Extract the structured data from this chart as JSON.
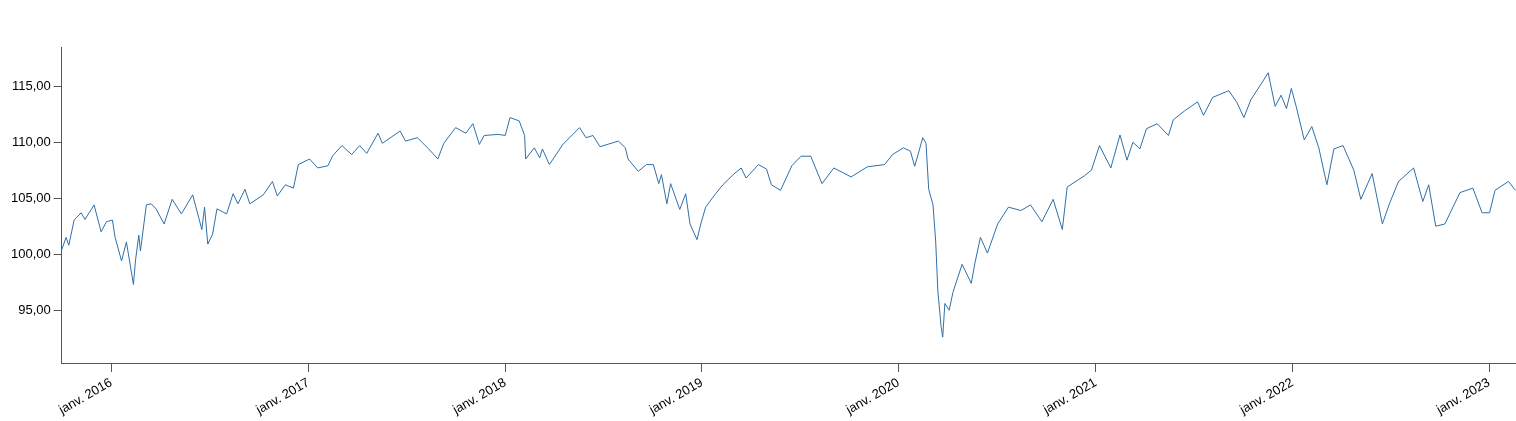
{
  "chart_data": {
    "type": "line",
    "marker": "none",
    "x": [
      "2015-10-01",
      "2015-10-09",
      "2015-10-14",
      "2015-10-24",
      "2015-11-06",
      "2015-11-13",
      "2015-11-30",
      "2015-12-13",
      "2015-12-23",
      "2016-01-03",
      "2016-01-08",
      "2016-01-20",
      "2016-01-29",
      "2016-02-11",
      "2016-02-15",
      "2016-02-21",
      "2016-02-24",
      "2016-03-06",
      "2016-03-15",
      "2016-03-24",
      "2016-04-08",
      "2016-04-23",
      "2016-05-10",
      "2016-05-31",
      "2016-06-17",
      "2016-06-22",
      "2016-06-28",
      "2016-07-07",
      "2016-07-15",
      "2016-08-02",
      "2016-08-14",
      "2016-08-23",
      "2016-09-05",
      "2016-09-14",
      "2016-10-09",
      "2016-10-26",
      "2016-11-04",
      "2016-11-19",
      "2016-12-04",
      "2016-12-13",
      "2017-01-03",
      "2017-01-18",
      "2017-02-06",
      "2017-02-15",
      "2017-03-04",
      "2017-03-22",
      "2017-04-06",
      "2017-04-19",
      "2017-05-10",
      "2017-05-18",
      "2017-06-20",
      "2017-06-30",
      "2017-07-22",
      "2017-08-12",
      "2017-08-29",
      "2017-09-09",
      "2017-10-01",
      "2017-10-20",
      "2017-11-02",
      "2017-11-14",
      "2017-11-23",
      "2017-12-19",
      "2018-01-01",
      "2018-01-10",
      "2018-01-27",
      "2018-02-06",
      "2018-02-08",
      "2018-02-24",
      "2018-03-06",
      "2018-03-11",
      "2018-03-24",
      "2018-04-18",
      "2018-05-19",
      "2018-05-31",
      "2018-06-13",
      "2018-06-26",
      "2018-07-30",
      "2018-08-12",
      "2018-08-17",
      "2018-09-05",
      "2018-09-20",
      "2018-10-03",
      "2018-10-13",
      "2018-10-18",
      "2018-10-28",
      "2018-11-04",
      "2018-11-21",
      "2018-12-02",
      "2018-12-10",
      "2018-12-23",
      "2018-12-30",
      "2019-01-08",
      "2019-01-25",
      "2019-02-09",
      "2019-02-28",
      "2019-03-15",
      "2019-03-24",
      "2019-04-16",
      "2019-05-01",
      "2019-05-10",
      "2019-05-27",
      "2019-06-17",
      "2019-07-04",
      "2019-07-22",
      "2019-08-12",
      "2019-09-03",
      "2019-10-05",
      "2019-11-04",
      "2019-12-06",
      "2019-12-21",
      "2020-01-10",
      "2020-01-23",
      "2020-01-31",
      "2020-02-15",
      "2020-02-21",
      "2020-02-26",
      "2020-03-05",
      "2020-03-10",
      "2020-03-14",
      "2020-03-20",
      "2020-03-23",
      "2020-03-27",
      "2020-04-04",
      "2020-04-11",
      "2020-04-28",
      "2020-05-15",
      "2020-05-22",
      "2020-06-01",
      "2020-06-14",
      "2020-07-03",
      "2020-07-23",
      "2020-08-15",
      "2020-09-02",
      "2020-09-23",
      "2020-10-14",
      "2020-10-31",
      "2020-11-09",
      "2020-12-11",
      "2020-12-24",
      "2021-01-08",
      "2021-01-29",
      "2021-02-15",
      "2021-02-28",
      "2021-03-11",
      "2021-03-24",
      "2021-04-05",
      "2021-04-25",
      "2021-05-16",
      "2021-05-25",
      "2021-06-15",
      "2021-07-09",
      "2021-07-20",
      "2021-08-06",
      "2021-09-05",
      "2021-09-20",
      "2021-10-03",
      "2021-10-16",
      "2021-11-06",
      "2021-11-17",
      "2021-11-30",
      "2021-12-11",
      "2021-12-21",
      "2021-12-30",
      "2022-01-08",
      "2022-01-23",
      "2022-02-06",
      "2022-02-19",
      "2022-03-06",
      "2022-03-19",
      "2022-04-05",
      "2022-04-25",
      "2022-05-08",
      "2022-05-29",
      "2022-06-17",
      "2022-06-30",
      "2022-07-17",
      "2022-08-14",
      "2022-08-31",
      "2022-09-11",
      "2022-09-24",
      "2022-10-11",
      "2022-11-08",
      "2022-12-02",
      "2022-12-19",
      "2023-01-02",
      "2023-01-12",
      "2023-02-06",
      "2023-02-19"
    ],
    "series": [
      {
        "color": "#2f70a8",
        "values": [
          100.4,
          101.5,
          100.8,
          103.05,
          103.7,
          103.1,
          104.4,
          102.0,
          102.9,
          103.05,
          101.5,
          99.4,
          101.1,
          97.3,
          99.5,
          101.7,
          100.3,
          104.4,
          104.5,
          104.05,
          102.7,
          104.9,
          103.6,
          105.3,
          102.2,
          104.2,
          100.9,
          101.8,
          104.05,
          103.6,
          105.4,
          104.5,
          105.8,
          104.5,
          105.3,
          106.5,
          105.2,
          106.2,
          105.9,
          108.0,
          108.5,
          107.7,
          107.9,
          108.8,
          109.7,
          108.9,
          109.7,
          109.0,
          110.8,
          109.9,
          111.0,
          110.1,
          110.4,
          109.4,
          108.5,
          109.9,
          111.3,
          110.8,
          111.65,
          109.8,
          110.6,
          110.7,
          110.6,
          112.2,
          111.9,
          110.6,
          108.5,
          109.5,
          108.6,
          109.4,
          108.0,
          109.8,
          111.3,
          110.4,
          110.6,
          109.6,
          110.1,
          109.5,
          108.5,
          107.4,
          108.0,
          108.0,
          106.3,
          107.1,
          104.5,
          106.3,
          104.0,
          105.4,
          102.7,
          101.3,
          102.7,
          104.2,
          105.3,
          106.2,
          107.1,
          107.7,
          106.8,
          108.0,
          107.6,
          106.2,
          105.7,
          107.9,
          108.75,
          108.75,
          106.3,
          107.7,
          106.9,
          107.8,
          108.0,
          108.9,
          109.5,
          109.2,
          107.85,
          110.4,
          109.9,
          105.8,
          104.4,
          101.1,
          96.7,
          93.55,
          92.6,
          95.6,
          95.0,
          96.6,
          99.1,
          97.4,
          99.25,
          101.5,
          100.1,
          102.7,
          104.2,
          103.9,
          104.4,
          102.9,
          104.9,
          102.2,
          106.0,
          107.0,
          107.5,
          109.7,
          107.7,
          110.65,
          108.4,
          110.0,
          109.4,
          111.2,
          111.65,
          110.6,
          112.0,
          112.8,
          113.6,
          112.4,
          114.0,
          114.6,
          113.55,
          112.2,
          113.8,
          115.35,
          116.2,
          113.2,
          114.2,
          113.0,
          114.8,
          113.2,
          110.2,
          111.4,
          109.5,
          106.2,
          109.4,
          109.7,
          107.5,
          104.9,
          107.2,
          102.7,
          104.5,
          106.5,
          107.7,
          104.7,
          106.2,
          102.5,
          102.7,
          105.5,
          105.9,
          103.7,
          103.7,
          105.7,
          106.5,
          105.7
        ]
      }
    ],
    "xlim": [
      "2015-10-01",
      "2023-02-20"
    ],
    "xticks": [
      {
        "value": "2016-01-01",
        "label": "janv. 2016"
      },
      {
        "value": "2017-01-01",
        "label": "janv. 2017"
      },
      {
        "value": "2018-01-01",
        "label": "janv. 2018"
      },
      {
        "value": "2019-01-01",
        "label": "janv. 2019"
      },
      {
        "value": "2020-01-01",
        "label": "janv. 2020"
      },
      {
        "value": "2021-01-01",
        "label": "janv. 2021"
      },
      {
        "value": "2022-01-01",
        "label": "janv. 2022"
      },
      {
        "value": "2023-01-01",
        "label": "janv. 2023"
      }
    ],
    "ylim": [
      90.2,
      118.5
    ],
    "yticks": [
      {
        "value": 95,
        "label": "95,00"
      },
      {
        "value": 100,
        "label": "100,00"
      },
      {
        "value": 105,
        "label": "105,00"
      },
      {
        "value": 110,
        "label": "110,00"
      },
      {
        "value": 115,
        "label": "115,00"
      }
    ]
  }
}
